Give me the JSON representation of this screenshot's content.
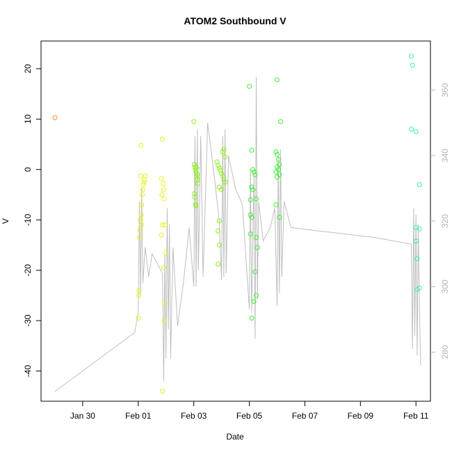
{
  "chart_data": {
    "type": "scatter",
    "title": "ATOM2 Southbound V",
    "xlabel": "Date",
    "ylabel": "V",
    "x_type": "date",
    "xlim": [
      "2024-01-28T12:00",
      "2024-02-11T12:30"
    ],
    "ylim": [
      -46,
      25.5
    ],
    "x_ticks": [
      {
        "date": "2024-01-30",
        "label": "Jan 30"
      },
      {
        "date": "2024-02-01",
        "label": "Feb 01"
      },
      {
        "date": "2024-02-03",
        "label": "Feb 03"
      },
      {
        "date": "2024-02-05",
        "label": "Feb 05"
      },
      {
        "date": "2024-02-07",
        "label": "Feb 07"
      },
      {
        "date": "2024-02-09",
        "label": "Feb 09"
      },
      {
        "date": "2024-02-11",
        "label": "Feb 11"
      }
    ],
    "y_ticks": [
      -40,
      -30,
      -20,
      -10,
      0,
      10,
      20
    ],
    "right_axis": {
      "ylim": [
        265,
        375
      ],
      "ticks": [
        280,
        300,
        320,
        340,
        360
      ],
      "color": "#b4b4b4"
    },
    "line_series": {
      "color": "#bebebe",
      "points": [
        [
          "2024-01-29T00:00",
          268
        ],
        [
          "2024-01-31T21:00",
          286
        ],
        [
          "2024-02-01T00:00",
          292
        ],
        [
          "2024-02-01T01:00",
          326
        ],
        [
          "2024-02-01T02:00",
          297
        ],
        [
          "2024-02-01T03:00",
          330
        ],
        [
          "2024-02-01T04:00",
          301
        ],
        [
          "2024-02-01T06:00",
          312
        ],
        [
          "2024-02-01T09:00",
          303
        ],
        [
          "2024-02-01T12:00",
          310
        ],
        [
          "2024-02-01T18:00",
          306
        ],
        [
          "2024-02-01T21:00",
          304
        ],
        [
          "2024-02-01T22:00",
          271
        ],
        [
          "2024-02-01T23:00",
          310
        ],
        [
          "2024-02-02T00:00",
          278
        ],
        [
          "2024-02-02T01:00",
          324
        ],
        [
          "2024-02-02T02:00",
          287
        ],
        [
          "2024-02-02T03:00",
          319
        ],
        [
          "2024-02-02T04:00",
          278
        ],
        [
          "2024-02-02T06:00",
          312
        ],
        [
          "2024-02-02T10:00",
          288
        ],
        [
          "2024-02-02T15:00",
          301
        ],
        [
          "2024-02-02T20:00",
          318
        ],
        [
          "2024-02-03T00:00",
          300
        ],
        [
          "2024-02-03T01:00",
          346
        ],
        [
          "2024-02-03T02:00",
          300
        ],
        [
          "2024-02-03T03:00",
          348
        ],
        [
          "2024-02-03T04:00",
          305
        ],
        [
          "2024-02-03T06:00",
          346
        ],
        [
          "2024-02-03T08:00",
          303
        ],
        [
          "2024-02-03T12:00",
          350
        ],
        [
          "2024-02-03T18:00",
          333
        ],
        [
          "2024-02-03T22:00",
          320
        ],
        [
          "2024-02-04T00:00",
          302
        ],
        [
          "2024-02-04T01:00",
          346
        ],
        [
          "2024-02-04T02:00",
          303
        ],
        [
          "2024-02-04T03:00",
          348
        ],
        [
          "2024-02-04T04:00",
          304
        ],
        [
          "2024-02-04T06:00",
          340
        ],
        [
          "2024-02-04T12:00",
          330
        ],
        [
          "2024-02-04T18:00",
          325
        ],
        [
          "2024-02-05T00:00",
          293
        ],
        [
          "2024-02-05T01:00",
          336
        ],
        [
          "2024-02-05T02:00",
          292
        ],
        [
          "2024-02-05T04:00",
          334
        ],
        [
          "2024-02-05T05:00",
          284
        ],
        [
          "2024-02-05T06:00",
          364
        ],
        [
          "2024-02-05T07:00",
          296
        ],
        [
          "2024-02-05T08:00",
          326
        ],
        [
          "2024-02-05T12:00",
          314
        ],
        [
          "2024-02-05T18:00",
          318
        ],
        [
          "2024-02-05T22:00",
          324
        ],
        [
          "2024-02-06T00:00",
          294
        ],
        [
          "2024-02-06T01:00",
          340
        ],
        [
          "2024-02-06T02:00",
          298
        ],
        [
          "2024-02-06T03:00",
          342
        ],
        [
          "2024-02-06T04:00",
          303
        ],
        [
          "2024-02-06T06:00",
          326
        ],
        [
          "2024-02-06T12:00",
          318
        ],
        [
          "2024-02-09T12:00",
          315
        ],
        [
          "2024-02-10T20:00",
          313
        ],
        [
          "2024-02-10T21:00",
          281
        ],
        [
          "2024-02-10T22:00",
          324
        ],
        [
          "2024-02-10T23:00",
          285
        ],
        [
          "2024-02-11T00:00",
          322
        ],
        [
          "2024-02-11T01:00",
          279
        ],
        [
          "2024-02-11T02:00",
          319
        ],
        [
          "2024-02-11T03:00",
          293
        ],
        [
          "2024-02-11T04:00",
          276
        ]
      ]
    },
    "scatter_series": {
      "colors": {
        "orange": "#ff8c28",
        "yellow": "#e2f41e",
        "lime": "#8cf01e",
        "green": "#3cee32",
        "aqua": "#3cf0a0"
      },
      "points": [
        [
          "2024-01-29T00:00",
          10.3,
          "orange"
        ],
        [
          "2024-02-01T00:00",
          -29.5,
          "yellow"
        ],
        [
          "2024-02-01T00:30",
          -25,
          "yellow"
        ],
        [
          "2024-02-01T00:45",
          -24,
          "yellow"
        ],
        [
          "2024-02-01T01:00",
          -13.5,
          "yellow"
        ],
        [
          "2024-02-01T01:30",
          -12,
          "yellow"
        ],
        [
          "2024-02-01T02:00",
          -10,
          "yellow"
        ],
        [
          "2024-02-01T02:30",
          -9,
          "yellow"
        ],
        [
          "2024-02-01T03:00",
          -7,
          "yellow"
        ],
        [
          "2024-02-01T03:30",
          -5,
          "yellow"
        ],
        [
          "2024-02-01T04:00",
          -4,
          "yellow"
        ],
        [
          "2024-02-01T04:30",
          -3,
          "yellow"
        ],
        [
          "2024-02-01T05:00",
          -2.5,
          "yellow"
        ],
        [
          "2024-02-01T05:30",
          -2,
          "yellow"
        ],
        [
          "2024-02-01T06:00",
          -1.3,
          "yellow"
        ],
        [
          "2024-02-01T02:00",
          -1.3,
          "yellow"
        ],
        [
          "2024-02-01T02:30",
          4.8,
          "yellow"
        ],
        [
          "2024-02-01T03:00",
          -11,
          "yellow"
        ],
        [
          "2024-02-01T21:00",
          6,
          "yellow"
        ],
        [
          "2024-02-01T20:00",
          -1.8,
          "yellow"
        ],
        [
          "2024-02-01T21:30",
          -2.8,
          "yellow"
        ],
        [
          "2024-02-01T22:00",
          -4,
          "yellow"
        ],
        [
          "2024-02-01T20:30",
          -5,
          "yellow"
        ],
        [
          "2024-02-01T22:30",
          -5.8,
          "yellow"
        ],
        [
          "2024-02-01T21:00",
          -11,
          "yellow"
        ],
        [
          "2024-02-01T23:00",
          -11,
          "yellow"
        ],
        [
          "2024-02-02T00:00",
          -16.5,
          "yellow"
        ],
        [
          "2024-02-01T22:00",
          -19.5,
          "yellow"
        ],
        [
          "2024-02-01T23:00",
          -26.5,
          "yellow"
        ],
        [
          "2024-02-01T22:30",
          -30,
          "yellow"
        ],
        [
          "2024-02-01T21:00",
          -44,
          "yellow"
        ],
        [
          "2024-02-01T20:00",
          -13,
          "yellow"
        ],
        [
          "2024-02-03T00:00",
          9.5,
          "lime"
        ],
        [
          "2024-02-03T00:30",
          1,
          "lime"
        ],
        [
          "2024-02-03T01:00",
          0.5,
          "lime"
        ],
        [
          "2024-02-03T01:30",
          0,
          "lime"
        ],
        [
          "2024-02-03T02:00",
          -0.5,
          "lime"
        ],
        [
          "2024-02-03T02:30",
          -1.5,
          "lime"
        ],
        [
          "2024-02-03T03:00",
          -2,
          "lime"
        ],
        [
          "2024-02-03T03:30",
          -2.8,
          "lime"
        ],
        [
          "2024-02-03T00:30",
          -4.8,
          "lime"
        ],
        [
          "2024-02-03T01:00",
          -5.5,
          "lime"
        ],
        [
          "2024-02-03T01:30",
          -7,
          "lime"
        ],
        [
          "2024-02-03T02:00",
          -7.2,
          "lime"
        ],
        [
          "2024-02-03T02:30",
          0.3,
          "lime"
        ],
        [
          "2024-02-03T03:00",
          -1,
          "lime"
        ],
        [
          "2024-02-03T20:00",
          1.5,
          "lime"
        ],
        [
          "2024-02-03T21:00",
          0.8,
          "lime"
        ],
        [
          "2024-02-03T22:00",
          0.3,
          "lime"
        ],
        [
          "2024-02-03T23:00",
          -0.2,
          "lime"
        ],
        [
          "2024-02-04T00:00",
          -0.8,
          "lime"
        ],
        [
          "2024-02-04T01:00",
          -1.3,
          "lime"
        ],
        [
          "2024-02-04T02:00",
          -2,
          "lime"
        ],
        [
          "2024-02-04T03:00",
          -2.5,
          "lime"
        ],
        [
          "2024-02-03T22:00",
          -3.5,
          "lime"
        ],
        [
          "2024-02-04T00:00",
          -4,
          "lime"
        ],
        [
          "2024-02-04T01:00",
          3.5,
          "lime"
        ],
        [
          "2024-02-04T02:00",
          4,
          "lime"
        ],
        [
          "2024-02-04T03:00",
          2.5,
          "lime"
        ],
        [
          "2024-02-03T22:00",
          -10.2,
          "lime"
        ],
        [
          "2024-02-03T21:00",
          -12.2,
          "lime"
        ],
        [
          "2024-02-03T22:00",
          -15,
          "lime"
        ],
        [
          "2024-02-03T21:00",
          -18.8,
          "lime"
        ],
        [
          "2024-02-05T00:00",
          16.5,
          "green"
        ],
        [
          "2024-02-05T02:00",
          3.8,
          "green"
        ],
        [
          "2024-02-05T03:00",
          0,
          "green"
        ],
        [
          "2024-02-05T04:00",
          -0.5,
          "green"
        ],
        [
          "2024-02-05T05:00",
          -1,
          "green"
        ],
        [
          "2024-02-05T02:00",
          -3.5,
          "green"
        ],
        [
          "2024-02-05T03:00",
          -4,
          "green"
        ],
        [
          "2024-02-05T01:00",
          -6,
          "green"
        ],
        [
          "2024-02-05T06:00",
          -5.8,
          "green"
        ],
        [
          "2024-02-05T01:00",
          -9,
          "green"
        ],
        [
          "2024-02-05T02:00",
          -9.5,
          "green"
        ],
        [
          "2024-02-05T01:00",
          -12.8,
          "green"
        ],
        [
          "2024-02-05T06:00",
          -13.5,
          "green"
        ],
        [
          "2024-02-05T07:00",
          -15.5,
          "green"
        ],
        [
          "2024-02-05T05:00",
          -20.3,
          "green"
        ],
        [
          "2024-02-05T06:00",
          -25,
          "green"
        ],
        [
          "2024-02-05T04:00",
          -26.2,
          "green"
        ],
        [
          "2024-02-05T02:00",
          -29.5,
          "green"
        ],
        [
          "2024-02-06T00:00",
          17.8,
          "green"
        ],
        [
          "2024-02-06T03:00",
          9.5,
          "green"
        ],
        [
          "2024-02-05T23:00",
          3.5,
          "green"
        ],
        [
          "2024-02-06T00:00",
          3,
          "green"
        ],
        [
          "2024-02-06T01:00",
          2,
          "green"
        ],
        [
          "2024-02-06T02:00",
          1,
          "green"
        ],
        [
          "2024-02-06T00:00",
          0.5,
          "green"
        ],
        [
          "2024-02-06T01:00",
          0,
          "green"
        ],
        [
          "2024-02-05T23:00",
          -0.5,
          "green"
        ],
        [
          "2024-02-06T02:00",
          -1,
          "green"
        ],
        [
          "2024-02-06T00:00",
          -1.5,
          "green"
        ],
        [
          "2024-02-05T23:00",
          -7,
          "green"
        ],
        [
          "2024-02-06T02:00",
          -9.5,
          "green"
        ],
        [
          "2024-02-10T20:00",
          22.5,
          "aqua"
        ],
        [
          "2024-02-10T21:00",
          20.7,
          "aqua"
        ],
        [
          "2024-02-10T20:00",
          8,
          "aqua"
        ],
        [
          "2024-02-11T00:00",
          7.5,
          "aqua"
        ],
        [
          "2024-02-11T03:00",
          -3,
          "aqua"
        ],
        [
          "2024-02-11T00:00",
          -11.5,
          "aqua"
        ],
        [
          "2024-02-11T03:00",
          -11.8,
          "aqua"
        ],
        [
          "2024-02-11T00:00",
          -14.2,
          "aqua"
        ],
        [
          "2024-02-11T01:00",
          -17.7,
          "aqua"
        ],
        [
          "2024-02-11T01:00",
          -23.8,
          "aqua"
        ],
        [
          "2024-02-11T03:00",
          -23.5,
          "aqua"
        ]
      ]
    }
  }
}
